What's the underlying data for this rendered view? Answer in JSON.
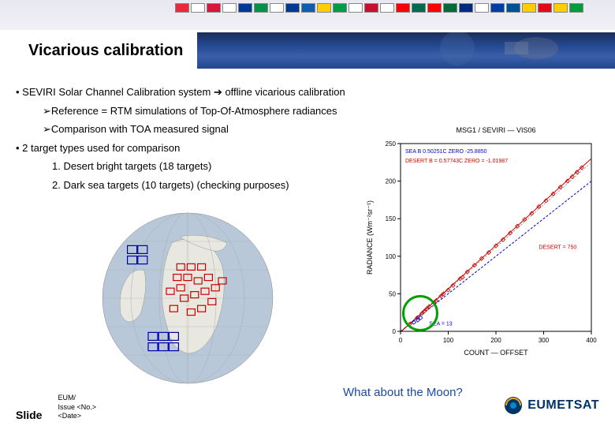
{
  "title": "Vicarious calibration",
  "bullets": {
    "b1": "SEVIRI Solar Channel Calibration system ➔ offline vicarious calibration",
    "b1a": "Reference  = RTM simulations of Top-Of-Atmosphere radiances",
    "b1b": "Comparison with TOA measured signal",
    "b2": "2 target types used for comparison",
    "b2a": "Desert bright targets (18 targets)",
    "b2b": "Dark sea targets (10 targets) (checking purposes)"
  },
  "chart": {
    "title": "MSG1 / SEVIRI  — VIS06",
    "xlabel": "COUNT — OFFSET",
    "ylabel": "RADIANCE (Wm⁻²sr⁻¹)",
    "xlim": [
      0,
      400
    ],
    "ylim": [
      0,
      250
    ],
    "xticks": [
      0,
      100,
      200,
      300,
      400
    ],
    "yticks": [
      0,
      50,
      100,
      150,
      200,
      250
    ],
    "sea_label": "SEA    B   0.50251C  ZERO   -25.8850",
    "desert_label": "DESERT B = 0.57743C  ZERO = -1.01987",
    "sea_color": "#0000cc",
    "desert_color": "#cc0000",
    "desert_anno": "DESERT = 750",
    "sea_anno": "SEA = 13",
    "tick_fontsize": 8,
    "label_fontsize": 9,
    "title_fontsize": 9,
    "anno_fontsize": 7,
    "desert_points_x": [
      20,
      35,
      50,
      60,
      75,
      90,
      110,
      125,
      140,
      155,
      170,
      185,
      200,
      215,
      230,
      245,
      260,
      275,
      290,
      305,
      320,
      335,
      350,
      360,
      370,
      380,
      45,
      55,
      70,
      85,
      100,
      130
    ],
    "desert_points_y": [
      10,
      18,
      27,
      33,
      41,
      50,
      61,
      70,
      79,
      88,
      97,
      105,
      114,
      122,
      131,
      140,
      149,
      157,
      166,
      174,
      183,
      192,
      200,
      206,
      212,
      218,
      24,
      30,
      38,
      47,
      55,
      72
    ],
    "sea_points_x": [
      28,
      36,
      42
    ],
    "sea_points_y": [
      12,
      15,
      18
    ]
  },
  "globe": {
    "water_color": "#b8c8d8",
    "land_color": "#e8e8e0",
    "desert_box_color": "#cc0000",
    "sea_box_color": "#0000aa",
    "desert_boxes": [
      [
        0.46,
        0.32
      ],
      [
        0.52,
        0.32
      ],
      [
        0.58,
        0.32
      ],
      [
        0.44,
        0.38
      ],
      [
        0.5,
        0.38
      ],
      [
        0.46,
        0.44
      ],
      [
        0.56,
        0.4
      ],
      [
        0.62,
        0.38
      ],
      [
        0.48,
        0.5
      ],
      [
        0.54,
        0.48
      ],
      [
        0.6,
        0.46
      ],
      [
        0.66,
        0.44
      ],
      [
        0.4,
        0.46
      ],
      [
        0.42,
        0.56
      ],
      [
        0.52,
        0.58
      ],
      [
        0.58,
        0.56
      ],
      [
        0.64,
        0.52
      ],
      [
        0.7,
        0.4
      ]
    ],
    "sea_boxes": [
      [
        0.18,
        0.22
      ],
      [
        0.24,
        0.22
      ],
      [
        0.18,
        0.28
      ],
      [
        0.24,
        0.28
      ],
      [
        0.3,
        0.72
      ],
      [
        0.36,
        0.72
      ],
      [
        0.42,
        0.72
      ],
      [
        0.3,
        0.78
      ],
      [
        0.36,
        0.78
      ],
      [
        0.42,
        0.78
      ]
    ]
  },
  "footer": {
    "slide": "Slide",
    "meta1": "EUM/",
    "meta2": "Issue <No.>",
    "meta3": "<Date>"
  },
  "moon_text": "What about the Moon?",
  "logo_text": "EUMETSAT",
  "flags": [
    "#ed2939",
    "#fff",
    "#dc143c",
    "#fff",
    "#003897",
    "#009246",
    "#fff",
    "#003897",
    "#0d5eaf",
    "#ffce00",
    "#009a49",
    "#fff",
    "#c8102e",
    "#fff",
    "#ff0000",
    "#006a4e",
    "#ff0000",
    "#046a38",
    "#002b7f",
    "#fff",
    "#003da5",
    "#005293",
    "#ffcd00",
    "#e30a17",
    "#ffce00",
    "#009b3a"
  ]
}
